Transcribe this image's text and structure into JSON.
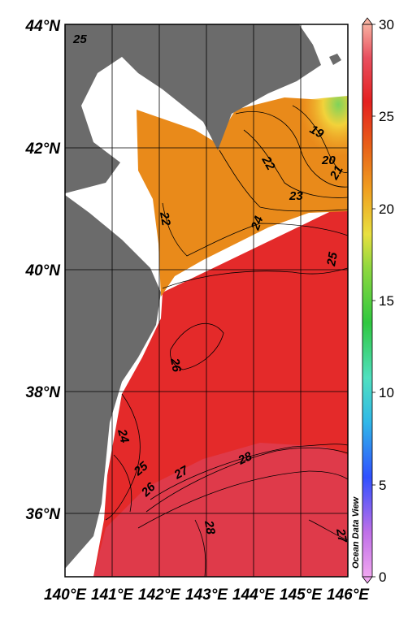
{
  "map": {
    "watermark": "Ocean Data View",
    "lat_labels": [
      "44°N",
      "42°N",
      "40°N",
      "38°N",
      "36°N"
    ],
    "lon_labels": [
      "140°E",
      "141°E",
      "142°E",
      "143°E",
      "144°E",
      "145°E",
      "146°E"
    ],
    "colorbar": {
      "min": 0,
      "max": 30,
      "tick_labels": [
        "30",
        "25",
        "20",
        "15",
        "10",
        "5",
        "0"
      ]
    },
    "contour_labels": [
      "25",
      "19",
      "20",
      "21",
      "22",
      "22",
      "23",
      "24",
      "25",
      "26",
      "24",
      "25",
      "26",
      "27",
      "28",
      "28",
      "27"
    ],
    "colors": {
      "land": "#6b6b6b",
      "warm_red": "#e42a2a",
      "orange": "#e98a1a",
      "green": "#7fd35a"
    }
  }
}
